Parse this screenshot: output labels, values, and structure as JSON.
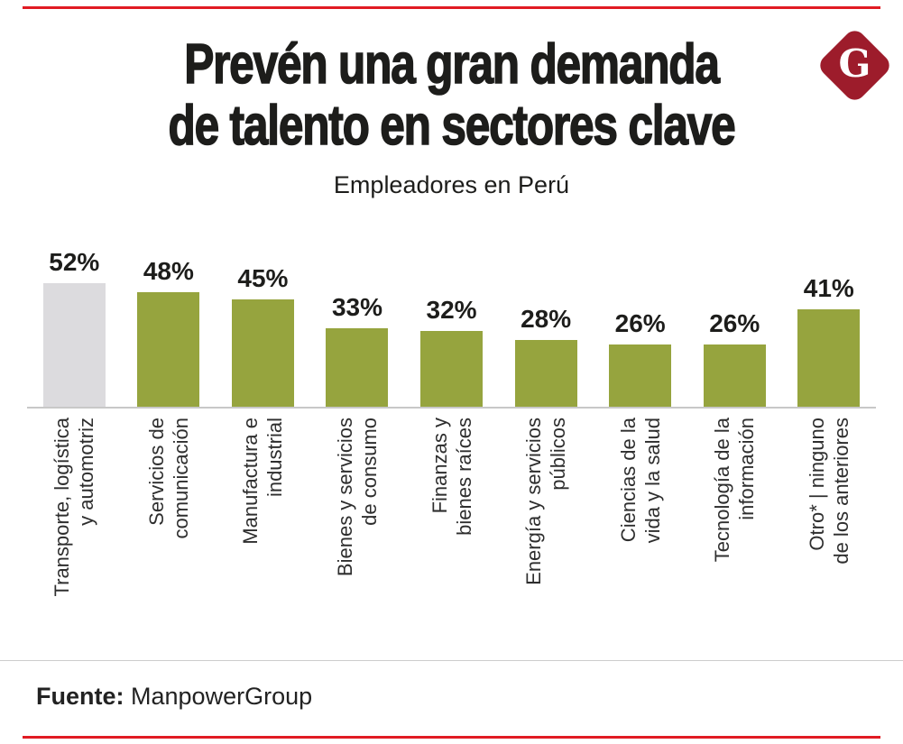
{
  "header": {
    "title_line1": "Prevén una gran demanda",
    "title_line2": "de talento en sectores clave",
    "subtitle": "Empleadores en Perú",
    "logo_letter": "G"
  },
  "chart_data": {
    "type": "bar",
    "title": "Prevén una gran demanda de talento en sectores clave",
    "subtitle": "Empleadores en Perú",
    "unit": "%",
    "categories": [
      "Transporte, logística y automotriz",
      "Servicios de comunicación",
      "Manufactura e industrial",
      "Bienes y servicios de consumo",
      "Finanzas y bienes raíces",
      "Energía y servicios públicos",
      "Ciencias de la vida y la salud",
      "Tecnología de la información",
      "Otro* | ninguno de los anteriores"
    ],
    "category_lines": [
      [
        "Transporte, logística",
        "y automotriz"
      ],
      [
        "Servicios de",
        "comunicación"
      ],
      [
        "Manufactura e",
        "industrial"
      ],
      [
        "Bienes y servicios",
        "de consumo"
      ],
      [
        "Finanzas y",
        "bienes raíces"
      ],
      [
        "Energía y servicios",
        "públicos"
      ],
      [
        "Ciencias de la",
        "vida y la salud"
      ],
      [
        "Tecnología de la",
        "información"
      ],
      [
        "Otro* | ninguno",
        "de los anteriores"
      ]
    ],
    "values": [
      52,
      48,
      45,
      33,
      32,
      28,
      26,
      26,
      41
    ],
    "value_labels": [
      "52%",
      "48%",
      "45%",
      "33%",
      "32%",
      "28%",
      "26%",
      "26%",
      "41%"
    ],
    "bar_colors": [
      "#dcdbde",
      "#96a43e",
      "#96a43e",
      "#96a43e",
      "#96a43e",
      "#96a43e",
      "#96a43e",
      "#96a43e",
      "#96a43e"
    ],
    "highlight_index": 0,
    "ylim": [
      0,
      60
    ],
    "grid": false,
    "legend": "none",
    "value_label_position": "above",
    "xlabel": "",
    "ylabel": ""
  },
  "footer": {
    "source_label": "Fuente:",
    "source_value": "ManpowerGroup"
  },
  "colors": {
    "bar_green": "#96a43e",
    "bar_gray": "#dcdbde",
    "axis_line": "#c8c8c8",
    "rule_red": "#e11b23",
    "logo_red": "#9d1c2b",
    "text_dark": "#1d1d1b"
  }
}
